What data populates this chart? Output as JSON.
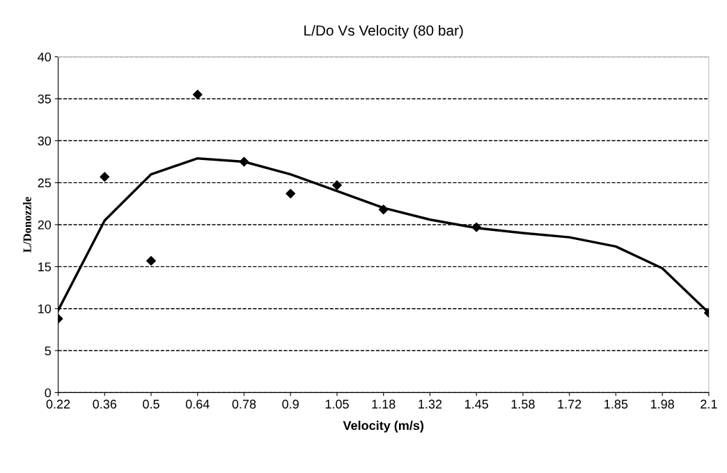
{
  "chart_data": {
    "type": "scatter",
    "title": "L/Do Vs Velocity (80 bar)",
    "xlabel": "Velocity (m/s)",
    "ylabel": "L/Donozzle",
    "categories": [
      "0.22",
      "0.36",
      "0.5",
      "0.64",
      "0.78",
      "0.9",
      "1.05",
      "1.18",
      "1.32",
      "1.45",
      "1.58",
      "1.72",
      "1.85",
      "1.98",
      "2.1"
    ],
    "series": [
      {
        "color": "#000000",
        "marker": "diamond",
        "values": [
          8.8,
          25.7,
          15.7,
          35.5,
          27.5,
          23.7,
          24.7,
          21.8,
          null,
          19.7,
          null,
          null,
          null,
          null,
          9.5
        ]
      },
      {
        "type": "line",
        "color": "#000000",
        "marker": "none",
        "line_style": "solid",
        "values": [
          9.8,
          20.5,
          26,
          27.9,
          27.5,
          26,
          24,
          22,
          20.6,
          19.6,
          19,
          18.5,
          17.4,
          14.8,
          9.5
        ]
      }
    ],
    "ylim": [
      0,
      40
    ],
    "yticks": [
      0,
      5,
      10,
      15,
      20,
      25,
      30,
      35,
      40
    ],
    "grid": "y",
    "legend": false
  }
}
